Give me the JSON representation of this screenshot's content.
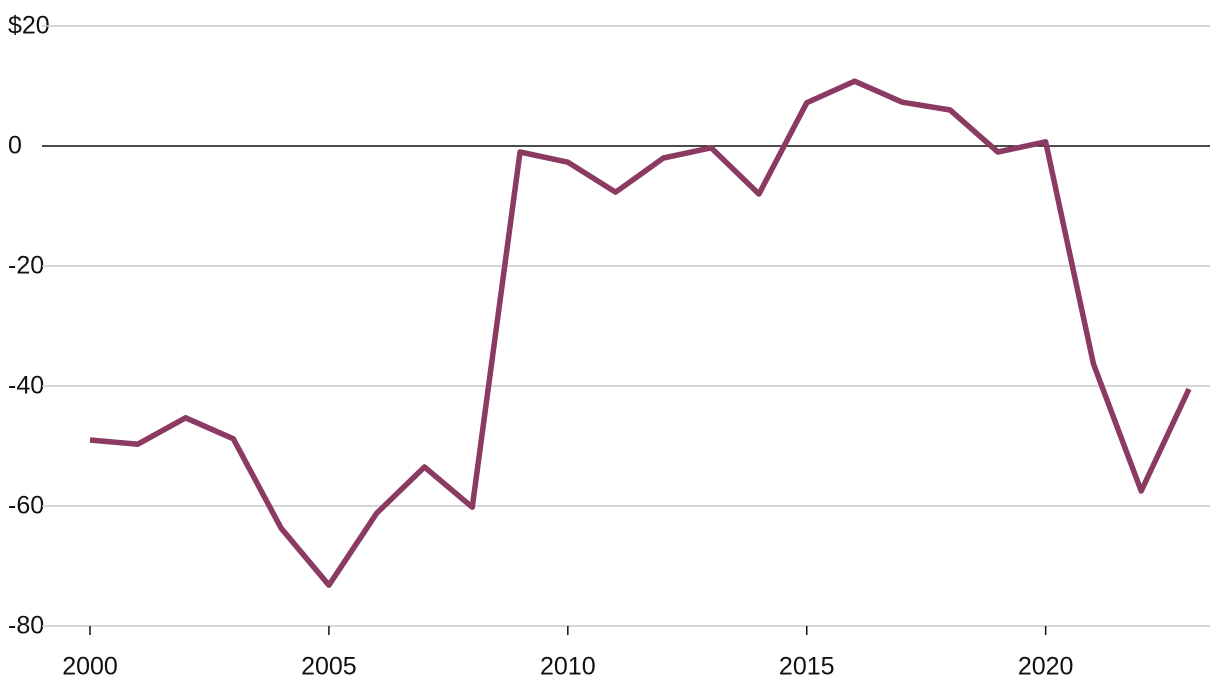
{
  "chart_data": {
    "type": "line",
    "x": [
      2000,
      2001,
      2002,
      2003,
      2004,
      2005,
      2006,
      2007,
      2008,
      2009,
      2010,
      2011,
      2012,
      2013,
      2014,
      2015,
      2016,
      2017,
      2018,
      2019,
      2020,
      2021,
      2022,
      2023
    ],
    "series": [
      {
        "color": "#8b3a62",
        "values": [
          -49,
          -49.7,
          -45.3,
          -48.8,
          -63.7,
          -73.2,
          -61.2,
          -53.5,
          -60.2,
          -1,
          -2.7,
          -7.7,
          -2,
          -0.3,
          -8,
          7.2,
          10.8,
          7.3,
          6,
          -1,
          0.7,
          -36.3,
          -57.5,
          -40.5
        ]
      }
    ],
    "xlim": [
      2000,
      2023
    ],
    "xticks": [
      2000,
      2005,
      2010,
      2015,
      2020
    ],
    "ylim": [
      -80,
      20
    ],
    "yticks": [
      {
        "value": 20,
        "label": "$20"
      },
      0,
      -20,
      -40,
      -60,
      -80
    ],
    "grid": true
  }
}
